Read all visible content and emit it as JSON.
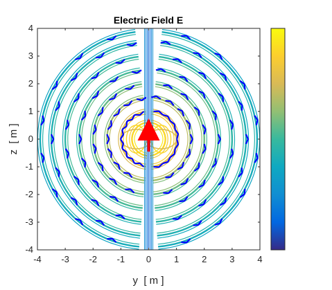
{
  "chart_data": {
    "type": "contour",
    "title": "Electric Field E",
    "xlabel": "y  [ m ]",
    "ylabel": "z  [ m ]",
    "xlim": [
      -4,
      4
    ],
    "ylim": [
      -4,
      4
    ],
    "xticks": [
      -4,
      -3,
      -2,
      -1,
      0,
      1,
      2,
      3,
      4
    ],
    "yticks": [
      -4,
      -3,
      -2,
      -1,
      0,
      1,
      2,
      3,
      4
    ],
    "grid": false,
    "colorbar": {
      "location": "right",
      "colormap": "parula",
      "tick_labels": []
    },
    "source": {
      "type": "dipole",
      "position": [
        0,
        0
      ],
      "orientation": "+z",
      "arrow_color": "#ff0000"
    },
    "field_arrows": {
      "color": "#0000ff",
      "pattern": "zigzag along wavefronts"
    },
    "contour_rings": [
      {
        "r": 0.6,
        "level": 0.95
      },
      {
        "r": 1.0,
        "level": 0.85
      },
      {
        "r": 1.5,
        "level": 0.7
      },
      {
        "r": 2.0,
        "level": 0.62
      },
      {
        "r": 2.5,
        "level": 0.57
      },
      {
        "r": 3.0,
        "level": 0.52
      },
      {
        "r": 3.5,
        "level": 0.48
      },
      {
        "r": 3.9,
        "level": 0.45
      }
    ],
    "colors": {
      "parula": [
        "#352a87",
        "#0268e1",
        "#108ed2",
        "#0fa9c1",
        "#38b99e",
        "#92bf73",
        "#d9ba56",
        "#fcce2e",
        "#f9fb0e"
      ],
      "axis": "#262626"
    }
  }
}
